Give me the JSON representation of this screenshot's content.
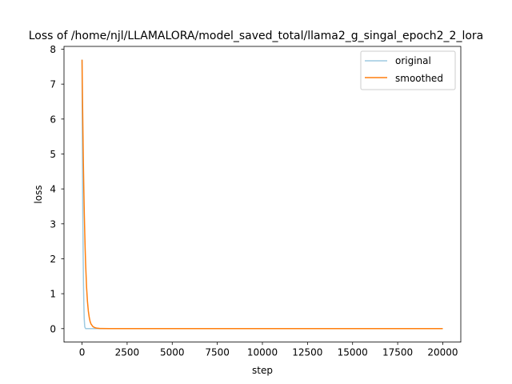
{
  "chart_data": {
    "type": "line",
    "title": "Loss of /home/njl/LLAMALORA/model_saved_total/llama2_g_singal_epoch2_2_lora",
    "xlabel": "step",
    "ylabel": "loss",
    "xlim": [
      -1000,
      21000
    ],
    "ylim": [
      -0.385,
      8.08
    ],
    "x_ticks": [
      0,
      2500,
      5000,
      7500,
      10000,
      12500,
      15000,
      17500,
      20000
    ],
    "x_tick_labels": [
      "0",
      "2500",
      "5000",
      "7500",
      "10000",
      "12500",
      "15000",
      "17500",
      "20000"
    ],
    "y_ticks": [
      0,
      1,
      2,
      3,
      4,
      5,
      6,
      7,
      8
    ],
    "y_tick_labels": [
      "0",
      "1",
      "2",
      "3",
      "4",
      "5",
      "6",
      "7",
      "8"
    ],
    "legend_position": "top-right",
    "grid": false,
    "series": [
      {
        "name": "original",
        "color": "#9ecae1",
        "x": [
          0,
          10,
          20,
          40,
          60,
          80,
          100,
          120,
          150,
          200,
          500,
          1000,
          5000,
          10000,
          15000,
          20000
        ],
        "y": [
          7.7,
          6.4,
          5.2,
          3.4,
          2.2,
          1.3,
          0.7,
          0.3,
          0.05,
          0.0,
          0.0,
          0.0,
          0.0,
          0.0,
          0.0,
          0.0
        ]
      },
      {
        "name": "smoothed",
        "color": "#ff7f0e",
        "x": [
          0,
          25,
          50,
          75,
          100,
          125,
          150,
          175,
          200,
          250,
          300,
          350,
          400,
          450,
          500,
          600,
          700,
          800,
          1000,
          1500,
          2000,
          5000,
          10000,
          15000,
          20000
        ],
        "y": [
          7.7,
          6.6,
          5.6,
          4.7,
          3.95,
          3.3,
          2.75,
          2.25,
          1.85,
          1.2,
          0.78,
          0.5,
          0.32,
          0.2,
          0.13,
          0.06,
          0.03,
          0.015,
          0.005,
          0.0,
          0.0,
          0.0,
          0.0,
          0.0,
          0.0
        ]
      }
    ]
  }
}
